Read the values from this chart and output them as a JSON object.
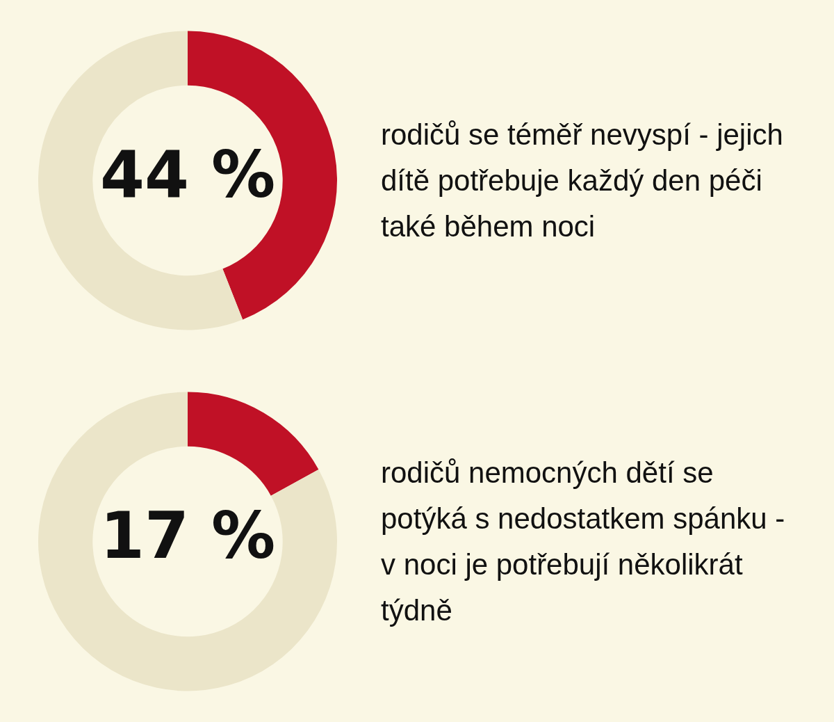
{
  "chart_data": [
    {
      "type": "donut",
      "categories": [
        null,
        null
      ],
      "values": [
        44,
        56
      ],
      "colors": [
        "#c01126",
        "#ebe5c9"
      ],
      "value_labels": [
        "44 %",
        null
      ],
      "annotations": [
        "rodičů se téměř nevyspí - jejich dítě potřebuje každý den péči také během noci"
      ]
    },
    {
      "type": "donut",
      "categories": [
        null,
        null
      ],
      "values": [
        17,
        83
      ],
      "colors": [
        "#c01126",
        "#ebe5c9"
      ],
      "value_labels": [
        "17 %",
        null
      ],
      "annotations": [
        "rodičů nemocných dětí se potýká s nedostatkem spánku - v noci je potřebují několikrát týdně"
      ]
    }
  ]
}
